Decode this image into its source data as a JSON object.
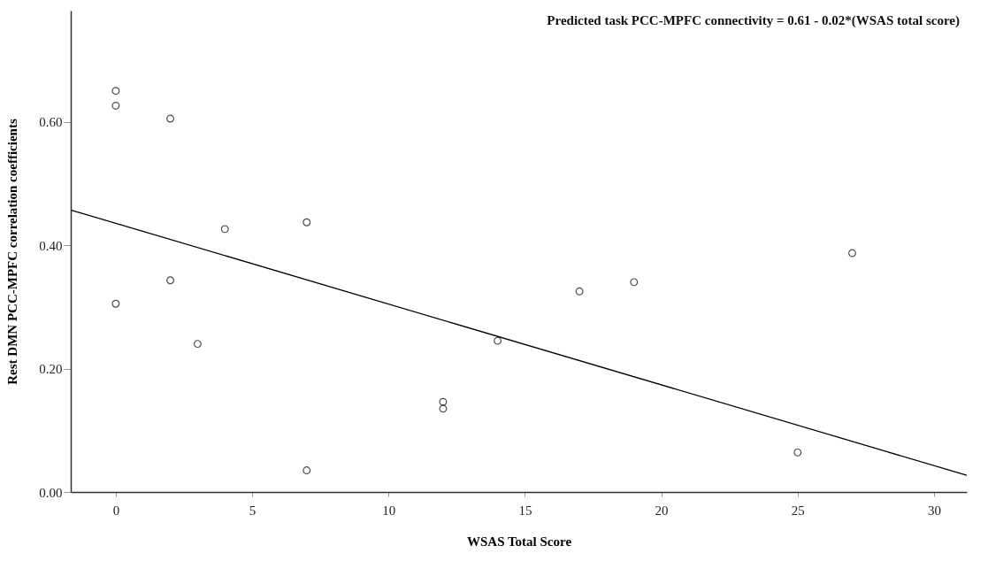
{
  "chart_data": {
    "type": "scatter",
    "xlabel": "WSAS Total Score",
    "ylabel": "Rest DMN PCC-MPFC correlation coefficients",
    "xlim": [
      -1.65,
      31.2
    ],
    "ylim": [
      0,
      0.78
    ],
    "xticks": [
      0,
      5,
      10,
      15,
      20,
      25,
      30
    ],
    "yticks": [
      {
        "value": 0,
        "label": "0.00"
      },
      {
        "value": 0.2,
        "label": "0.20"
      },
      {
        "value": 0.4,
        "label": "0.40"
      },
      {
        "value": 0.6,
        "label": "0.60"
      }
    ],
    "grid": false,
    "marker": "circle",
    "annotations": [
      "Predicted task PCC-MPFC connectivity = 0.61 - 0.02*(WSAS total score)"
    ],
    "series": [
      {
        "color": "#000000",
        "x": [
          0,
          0,
          2,
          4,
          7,
          2,
          0,
          3,
          7,
          12,
          12,
          14,
          17,
          19,
          25,
          27
        ],
        "values": [
          0.65,
          0.626,
          0.605,
          0.426,
          0.437,
          0.343,
          0.305,
          0.24,
          0.035,
          0.146,
          0.135,
          0.245,
          0.325,
          0.34,
          0.064,
          0.387
        ]
      },
      {
        "type": "line",
        "marker": "none",
        "color": "#000000",
        "x": [
          -1.65,
          31.2
        ],
        "values": [
          0.457,
          0.027
        ]
      }
    ]
  }
}
